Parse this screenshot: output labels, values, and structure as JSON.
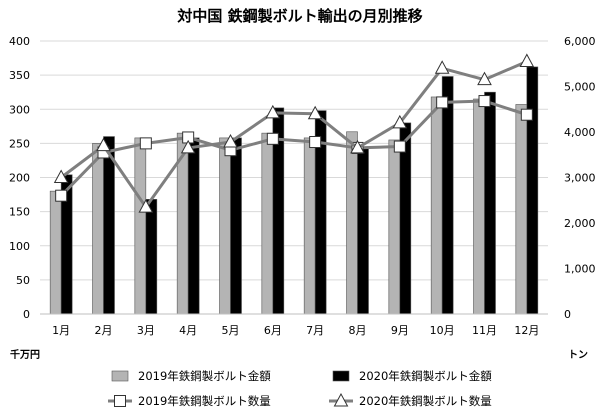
{
  "chart_data": {
    "type": "bar",
    "title": "対中国 鉄鋼製ボルト輸出の月別推移",
    "categories": [
      "1月",
      "2月",
      "3月",
      "4月",
      "5月",
      "6月",
      "7月",
      "8月",
      "9月",
      "10月",
      "11月",
      "12月"
    ],
    "left_axis": {
      "unit": "千万円",
      "ylim": [
        0,
        400
      ],
      "ticks": [
        0,
        50,
        100,
        150,
        200,
        250,
        300,
        350,
        400
      ],
      "tick_labels": [
        "0",
        "50",
        "100",
        "150",
        "200",
        "250",
        "300",
        "350",
        "400"
      ]
    },
    "right_axis": {
      "unit": "トン",
      "ylim": [
        0,
        6000
      ],
      "ticks": [
        0,
        1000,
        2000,
        3000,
        4000,
        5000,
        6000
      ],
      "tick_labels": [
        "0",
        "1,000",
        "2,000",
        "3,000",
        "4,000",
        "5,000",
        "6,000"
      ]
    },
    "grid": true,
    "legend_position": "bottom",
    "series": [
      {
        "name": "2019年鉄鋼製ボルト金額",
        "type": "bar",
        "axis": "left",
        "color": "#b4b4b4",
        "values": [
          180,
          250,
          258,
          265,
          258,
          265,
          258,
          267,
          255,
          318,
          315,
          307
        ]
      },
      {
        "name": "2020年鉄鋼製ボルト金額",
        "type": "bar",
        "axis": "left",
        "color": "#000000",
        "values": [
          204,
          260,
          168,
          258,
          258,
          302,
          298,
          245,
          280,
          348,
          325,
          362
        ]
      },
      {
        "name": "2019年鉄鋼製ボルト数量",
        "type": "line",
        "axis": "right",
        "marker": "square",
        "color": "#7f7f7f",
        "values": [
          2600,
          3550,
          3750,
          3880,
          3600,
          3850,
          3780,
          3650,
          3680,
          4650,
          4680,
          4380
        ]
      },
      {
        "name": "2020年鉄鋼製ボルト数量",
        "type": "line",
        "axis": "right",
        "marker": "triangle",
        "color": "#7f7f7f",
        "values": [
          3000,
          3700,
          2350,
          3650,
          3780,
          4420,
          4400,
          3650,
          4200,
          5400,
          5150,
          5550
        ]
      }
    ]
  }
}
